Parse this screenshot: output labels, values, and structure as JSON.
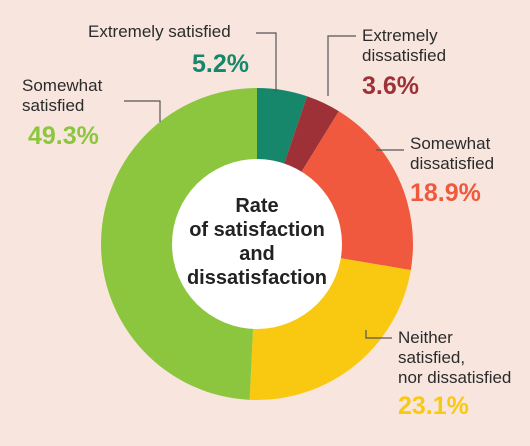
{
  "chart_data": {
    "type": "donut",
    "title": [
      "Rate",
      "of satisfaction",
      "and",
      "dissatisfaction"
    ],
    "categories": [
      "Extremely satisfied",
      "Extremely\ndissatisfied",
      "Somewhat\ndissatisfied",
      "Neither\nsatisfied,\nnor dissatisfied",
      "Somewhat\nsatisfied"
    ],
    "values": [
      5.2,
      3.6,
      18.9,
      23.1,
      49.3
    ],
    "value_labels": [
      "5.2%",
      "3.6%",
      "18.9%",
      "23.1%",
      "49.3%"
    ],
    "colors": [
      "#17876b",
      "#9e3038",
      "#f0593d",
      "#f9c912",
      "#8cc63f"
    ]
  }
}
